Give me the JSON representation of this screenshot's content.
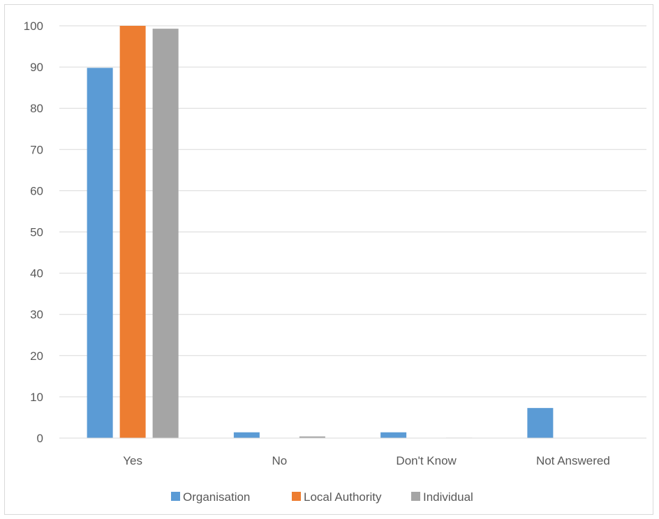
{
  "chart_data": {
    "type": "bar",
    "categories": [
      "Yes",
      "No",
      "Don't Know",
      "Not Answered"
    ],
    "series": [
      {
        "name": "Organisation",
        "color": "#5b9bd5",
        "values": [
          89.8,
          1.4,
          1.4,
          7.3
        ]
      },
      {
        "name": "Local Authority",
        "color": "#ed7d31",
        "values": [
          100,
          0,
          0,
          0
        ]
      },
      {
        "name": "Individual",
        "color": "#a5a5a5",
        "values": [
          99.3,
          0.4,
          0.1,
          0
        ]
      }
    ],
    "yticks": [
      "0",
      "10",
      "20",
      "30",
      "40",
      "50",
      "60",
      "70",
      "80",
      "90",
      "100"
    ],
    "ylim": [
      0,
      100
    ],
    "grid": true,
    "legend": "bottom",
    "title": "",
    "xlabel": "",
    "ylabel": ""
  }
}
